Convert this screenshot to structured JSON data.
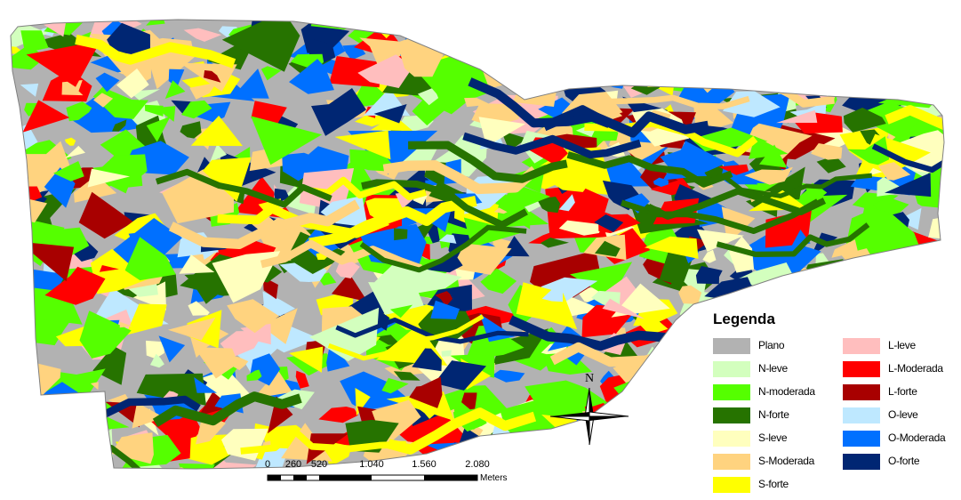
{
  "legend": {
    "title": "Legenda",
    "items": [
      {
        "label": "Plano",
        "color": "#B2B2B2"
      },
      {
        "label": "N-leve",
        "color": "#D3FFBE"
      },
      {
        "label": "N-moderada",
        "color": "#55FF00"
      },
      {
        "label": "N-forte",
        "color": "#267300"
      },
      {
        "label": "S-leve",
        "color": "#FFFFBE"
      },
      {
        "label": "S-Moderada",
        "color": "#FFD37F"
      },
      {
        "label": "S-forte",
        "color": "#FFFF00"
      },
      {
        "label": "L-leve",
        "color": "#FFBEBE"
      },
      {
        "label": "L-Moderada",
        "color": "#FF0000"
      },
      {
        "label": "L-forte",
        "color": "#A80000"
      },
      {
        "label": "O-leve",
        "color": "#BEE8FF"
      },
      {
        "label": "O-Moderada",
        "color": "#0070FF"
      },
      {
        "label": "O-forte",
        "color": "#002673"
      }
    ]
  },
  "scale_bar": {
    "ticks": [
      "0",
      "260",
      "520",
      "1.040",
      "1.560",
      "2.080"
    ],
    "unit": "Meters"
  },
  "north_arrow": {
    "label": "N"
  }
}
